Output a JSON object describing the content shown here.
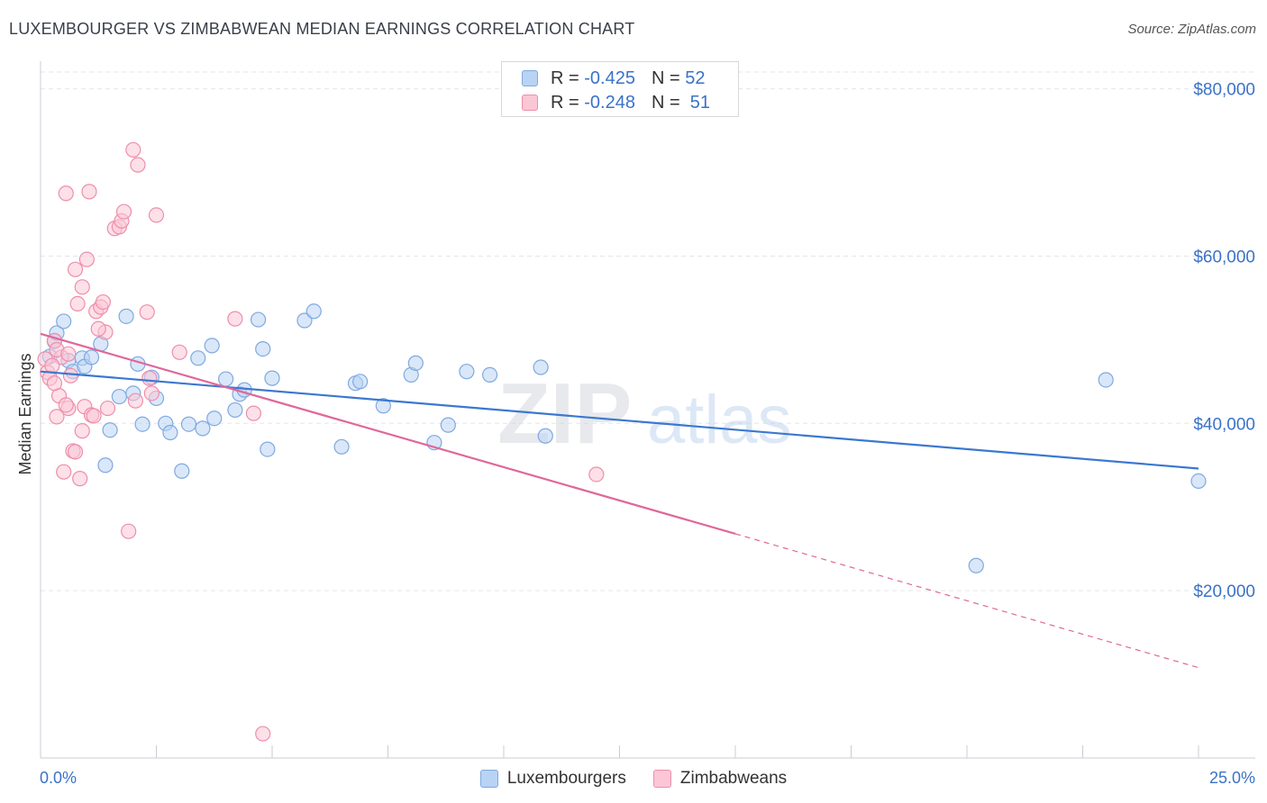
{
  "title": "LUXEMBOURGER VS ZIMBABWEAN MEDIAN EARNINGS CORRELATION CHART",
  "source": "Source: ZipAtlas.com",
  "watermark": {
    "zip": "ZIP",
    "atlas": "atlas"
  },
  "legend": {
    "rows": [
      {
        "r_label": "R =",
        "r_value": "-0.425",
        "n_label": "N =",
        "n_value": "52"
      },
      {
        "r_label": "R =",
        "r_value": "-0.248",
        "n_label": "N =",
        "n_value": "51"
      }
    ]
  },
  "bottom_legend": {
    "series1": "Luxembourgers",
    "series2": "Zimbabweans"
  },
  "colors": {
    "blue": "#3b78d0",
    "blue_fill": "#b9d3f4",
    "blue_stroke": "#7fa9e0",
    "pink": "#e0679a",
    "pink_fill": "#fbc6d6",
    "pink_stroke": "#ee8eab",
    "tick_label": "#3b72c8",
    "grid": "#e3e6ec"
  },
  "chart_data": {
    "type": "scatter",
    "ylabel": "Median Earnings",
    "xlabel": "",
    "x_tick_labels": [
      "0.0%",
      "25.0%"
    ],
    "y_tick_labels": [
      "$20,000",
      "$40,000",
      "$60,000",
      "$80,000"
    ],
    "y_ticks": [
      20000,
      40000,
      60000,
      80000
    ],
    "xlim": [
      0,
      25
    ],
    "ylim": [
      0,
      82000
    ],
    "grid": true,
    "series": [
      {
        "name": "Luxembourgers",
        "trend": {
          "x0": 0,
          "y0": 46200,
          "x1": 25,
          "y1": 34600
        },
        "points": [
          [
            0.2,
            48000
          ],
          [
            0.3,
            49800
          ],
          [
            0.35,
            50800
          ],
          [
            0.5,
            52200
          ],
          [
            0.6,
            47500
          ],
          [
            0.7,
            46200
          ],
          [
            0.9,
            47800
          ],
          [
            0.95,
            46800
          ],
          [
            1.1,
            47900
          ],
          [
            1.3,
            49500
          ],
          [
            1.4,
            35000
          ],
          [
            1.5,
            39200
          ],
          [
            1.7,
            43200
          ],
          [
            1.85,
            52800
          ],
          [
            2.0,
            43600
          ],
          [
            2.1,
            47100
          ],
          [
            2.2,
            39900
          ],
          [
            2.4,
            45500
          ],
          [
            2.5,
            43000
          ],
          [
            2.7,
            40000
          ],
          [
            2.8,
            38900
          ],
          [
            3.05,
            34300
          ],
          [
            3.2,
            39900
          ],
          [
            3.4,
            47800
          ],
          [
            3.5,
            39400
          ],
          [
            3.7,
            49300
          ],
          [
            3.75,
            40600
          ],
          [
            4.0,
            45300
          ],
          [
            4.2,
            41600
          ],
          [
            4.3,
            43500
          ],
          [
            4.4,
            44000
          ],
          [
            4.7,
            52400
          ],
          [
            4.8,
            48900
          ],
          [
            4.9,
            36900
          ],
          [
            5.0,
            45400
          ],
          [
            5.7,
            52300
          ],
          [
            5.9,
            53400
          ],
          [
            6.5,
            37200
          ],
          [
            6.8,
            44800
          ],
          [
            6.9,
            45000
          ],
          [
            7.4,
            42100
          ],
          [
            8.0,
            45800
          ],
          [
            8.1,
            47200
          ],
          [
            8.5,
            37700
          ],
          [
            8.8,
            39800
          ],
          [
            9.2,
            46200
          ],
          [
            9.7,
            45800
          ],
          [
            10.8,
            46700
          ],
          [
            10.9,
            38500
          ],
          [
            23.0,
            45200
          ],
          [
            20.2,
            23000
          ],
          [
            25.0,
            33100
          ]
        ]
      },
      {
        "name": "Zimbabweans",
        "trend": {
          "x0": 0,
          "y0": 50700,
          "x1": 15.0,
          "y1": 26800,
          "dash_x1": 25,
          "dash_y1": 10800
        },
        "points": [
          [
            0.1,
            47700
          ],
          [
            0.15,
            46100
          ],
          [
            0.2,
            45400
          ],
          [
            0.3,
            49900
          ],
          [
            0.35,
            40800
          ],
          [
            0.4,
            43300
          ],
          [
            0.45,
            47900
          ],
          [
            0.5,
            34200
          ],
          [
            0.55,
            67500
          ],
          [
            0.6,
            41800
          ],
          [
            0.7,
            36700
          ],
          [
            0.75,
            58400
          ],
          [
            0.8,
            54300
          ],
          [
            0.85,
            33400
          ],
          [
            0.9,
            39100
          ],
          [
            0.95,
            42000
          ],
          [
            1.0,
            59600
          ],
          [
            1.05,
            67700
          ],
          [
            1.1,
            41000
          ],
          [
            1.2,
            53400
          ],
          [
            1.3,
            53900
          ],
          [
            1.35,
            54500
          ],
          [
            1.4,
            50900
          ],
          [
            1.45,
            41800
          ],
          [
            1.6,
            63300
          ],
          [
            1.7,
            63500
          ],
          [
            1.75,
            64200
          ],
          [
            1.8,
            65300
          ],
          [
            1.9,
            27100
          ],
          [
            2.0,
            72700
          ],
          [
            2.05,
            42700
          ],
          [
            2.1,
            70900
          ],
          [
            2.3,
            53300
          ],
          [
            2.35,
            45400
          ],
          [
            2.4,
            43600
          ],
          [
            2.5,
            64900
          ],
          [
            3.0,
            48500
          ],
          [
            4.2,
            52500
          ],
          [
            4.6,
            41200
          ],
          [
            4.8,
            2900
          ],
          [
            12.0,
            33900
          ],
          [
            0.25,
            46900
          ],
          [
            0.3,
            44800
          ],
          [
            0.55,
            42200
          ],
          [
            0.65,
            45700
          ],
          [
            1.25,
            51300
          ],
          [
            0.9,
            56300
          ],
          [
            0.35,
            48800
          ],
          [
            0.6,
            48300
          ],
          [
            1.15,
            40900
          ],
          [
            0.75,
            36600
          ]
        ]
      }
    ]
  }
}
